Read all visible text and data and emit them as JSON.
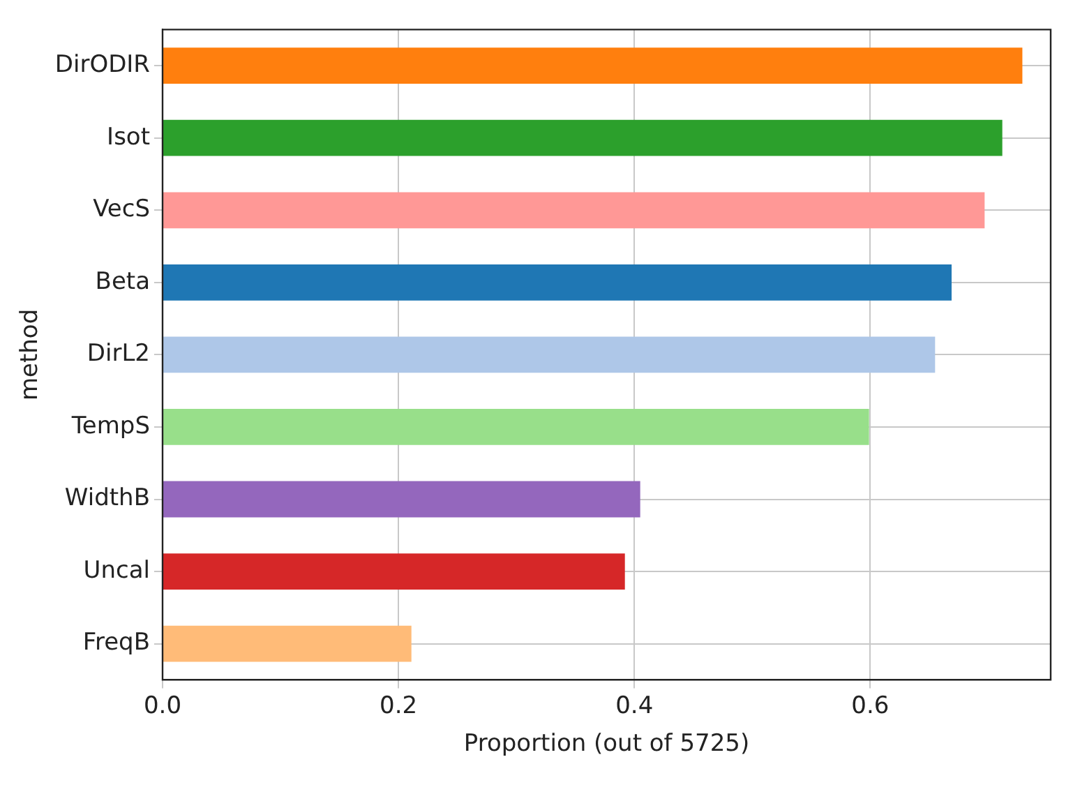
{
  "chart_data": {
    "type": "bar",
    "orientation": "horizontal",
    "xlabel": "Proportion (out of 5725)",
    "ylabel": "method",
    "categories": [
      "DirODIR",
      "Isot",
      "VecS",
      "Beta",
      "DirL2",
      "TempS",
      "WidthB",
      "Uncal",
      "FreqB"
    ],
    "values": [
      0.729,
      0.712,
      0.697,
      0.669,
      0.655,
      0.599,
      0.405,
      0.392,
      0.211
    ],
    "colors": [
      "#ff7f0e",
      "#2ca02c",
      "#ff9896",
      "#1f77b4",
      "#aec7e8",
      "#98df8a",
      "#9467bd",
      "#d62728",
      "#ffbb78"
    ],
    "xlim": [
      0,
      0.753
    ],
    "xticks": [
      {
        "value": 0,
        "label": "0.0"
      },
      {
        "value": 0.2,
        "label": "0.2"
      },
      {
        "value": 0.4,
        "label": "0.4"
      },
      {
        "value": 0.6,
        "label": "0.6"
      }
    ],
    "grid": true,
    "legend": false
  }
}
